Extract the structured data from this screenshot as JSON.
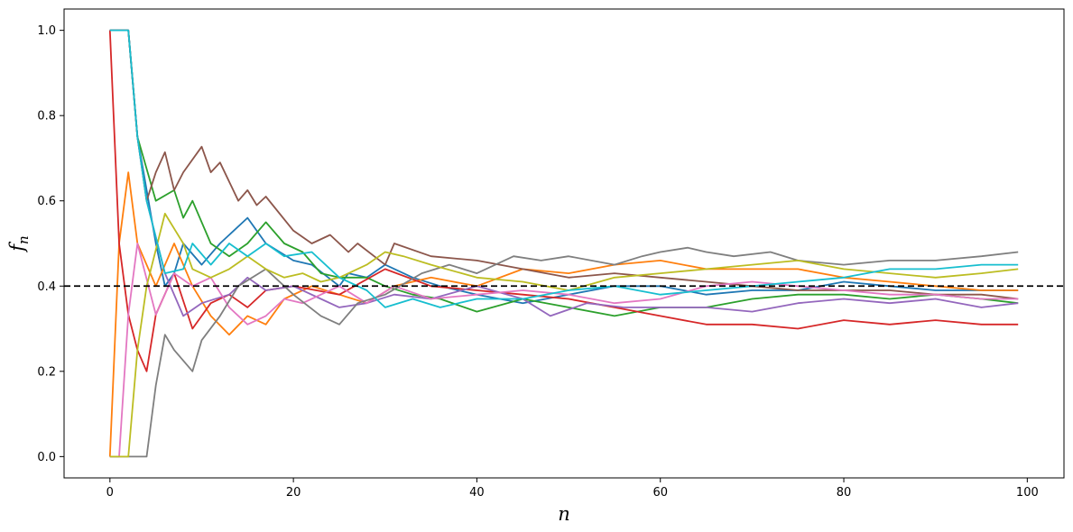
{
  "chart_data": {
    "type": "line",
    "title": "",
    "xlabel": "n",
    "ylabel": "f",
    "ylabel_sub": "n",
    "xlim": [
      -5,
      104
    ],
    "ylim": [
      -0.05,
      1.05
    ],
    "xticks": [
      0,
      20,
      40,
      60,
      80,
      100
    ],
    "yticks": [
      0.0,
      0.2,
      0.4,
      0.6,
      0.8,
      1.0
    ],
    "xtick_labels": [
      "0",
      "20",
      "40",
      "60",
      "80",
      "100"
    ],
    "ytick_labels": [
      "0.0",
      "0.2",
      "0.4",
      "0.6",
      "0.8",
      "1.0"
    ],
    "grid": false,
    "legend": "none",
    "reference_line": {
      "y": 0.4,
      "style": "dashed",
      "color": "#000000"
    },
    "x": [
      0,
      99
    ],
    "series": [
      {
        "color": "#1f77b4",
        "keypoints": [
          [
            0,
            1
          ],
          [
            2,
            1
          ],
          [
            3,
            0.75
          ],
          [
            5,
            0.5
          ],
          [
            6,
            0.4
          ],
          [
            7,
            0.43
          ],
          [
            8,
            0.5
          ],
          [
            10,
            0.45
          ],
          [
            12,
            0.5
          ],
          [
            15,
            0.56
          ],
          [
            17,
            0.5
          ],
          [
            20,
            0.46
          ],
          [
            22,
            0.45
          ],
          [
            25,
            0.4
          ],
          [
            26,
            0.43
          ],
          [
            28,
            0.42
          ],
          [
            30,
            0.45
          ],
          [
            33,
            0.42
          ],
          [
            36,
            0.4
          ],
          [
            40,
            0.38
          ],
          [
            45,
            0.36
          ],
          [
            50,
            0.38
          ],
          [
            55,
            0.4
          ],
          [
            60,
            0.4
          ],
          [
            65,
            0.38
          ],
          [
            70,
            0.39
          ],
          [
            75,
            0.39
          ],
          [
            80,
            0.41
          ],
          [
            85,
            0.4
          ],
          [
            90,
            0.39
          ],
          [
            95,
            0.39
          ],
          [
            99,
            0.39
          ]
        ]
      },
      {
        "color": "#ff7f0e",
        "keypoints": [
          [
            0,
            0
          ],
          [
            1,
            0.5
          ],
          [
            2,
            0.667
          ],
          [
            3,
            0.5
          ],
          [
            5,
            0.4
          ],
          [
            7,
            0.5
          ],
          [
            9,
            0.4
          ],
          [
            11,
            0.33
          ],
          [
            13,
            0.286
          ],
          [
            15,
            0.33
          ],
          [
            17,
            0.31
          ],
          [
            19,
            0.37
          ],
          [
            22,
            0.4
          ],
          [
            25,
            0.38
          ],
          [
            28,
            0.36
          ],
          [
            31,
            0.4
          ],
          [
            35,
            0.42
          ],
          [
            40,
            0.4
          ],
          [
            45,
            0.44
          ],
          [
            50,
            0.43
          ],
          [
            55,
            0.45
          ],
          [
            60,
            0.46
          ],
          [
            65,
            0.44
          ],
          [
            70,
            0.44
          ],
          [
            75,
            0.44
          ],
          [
            80,
            0.42
          ],
          [
            85,
            0.41
          ],
          [
            90,
            0.4
          ],
          [
            95,
            0.39
          ],
          [
            99,
            0.39
          ]
        ]
      },
      {
        "color": "#2ca02c",
        "keypoints": [
          [
            0,
            1
          ],
          [
            2,
            1
          ],
          [
            3,
            0.75
          ],
          [
            5,
            0.6
          ],
          [
            7,
            0.625
          ],
          [
            8,
            0.56
          ],
          [
            9,
            0.6
          ],
          [
            11,
            0.5
          ],
          [
            13,
            0.47
          ],
          [
            15,
            0.5
          ],
          [
            17,
            0.55
          ],
          [
            19,
            0.5
          ],
          [
            21,
            0.48
          ],
          [
            23,
            0.43
          ],
          [
            25,
            0.42
          ],
          [
            28,
            0.42
          ],
          [
            30,
            0.4
          ],
          [
            33,
            0.38
          ],
          [
            36,
            0.37
          ],
          [
            40,
            0.34
          ],
          [
            45,
            0.37
          ],
          [
            50,
            0.35
          ],
          [
            55,
            0.33
          ],
          [
            60,
            0.35
          ],
          [
            65,
            0.35
          ],
          [
            70,
            0.37
          ],
          [
            75,
            0.38
          ],
          [
            80,
            0.38
          ],
          [
            85,
            0.37
          ],
          [
            90,
            0.38
          ],
          [
            95,
            0.37
          ],
          [
            99,
            0.36
          ]
        ]
      },
      {
        "color": "#d62728",
        "keypoints": [
          [
            0,
            1
          ],
          [
            1,
            0.5
          ],
          [
            2,
            0.333
          ],
          [
            3,
            0.25
          ],
          [
            4,
            0.2
          ],
          [
            5,
            0.333
          ],
          [
            7,
            0.43
          ],
          [
            9,
            0.3
          ],
          [
            11,
            0.36
          ],
          [
            13,
            0.38
          ],
          [
            15,
            0.35
          ],
          [
            17,
            0.39
          ],
          [
            20,
            0.4
          ],
          [
            25,
            0.38
          ],
          [
            30,
            0.44
          ],
          [
            35,
            0.4
          ],
          [
            40,
            0.39
          ],
          [
            45,
            0.38
          ],
          [
            50,
            0.37
          ],
          [
            55,
            0.35
          ],
          [
            60,
            0.33
          ],
          [
            65,
            0.31
          ],
          [
            70,
            0.31
          ],
          [
            75,
            0.3
          ],
          [
            80,
            0.32
          ],
          [
            85,
            0.31
          ],
          [
            90,
            0.32
          ],
          [
            95,
            0.31
          ],
          [
            99,
            0.31
          ]
        ]
      },
      {
        "color": "#9467bd",
        "keypoints": [
          [
            0,
            1
          ],
          [
            2,
            1
          ],
          [
            3,
            0.75
          ],
          [
            4,
            0.6
          ],
          [
            6,
            0.43
          ],
          [
            8,
            0.33
          ],
          [
            10,
            0.36
          ],
          [
            13,
            0.38
          ],
          [
            15,
            0.42
          ],
          [
            17,
            0.39
          ],
          [
            20,
            0.4
          ],
          [
            23,
            0.37
          ],
          [
            25,
            0.35
          ],
          [
            28,
            0.36
          ],
          [
            31,
            0.38
          ],
          [
            35,
            0.37
          ],
          [
            40,
            0.4
          ],
          [
            45,
            0.37
          ],
          [
            48,
            0.33
          ],
          [
            52,
            0.36
          ],
          [
            56,
            0.35
          ],
          [
            60,
            0.35
          ],
          [
            65,
            0.35
          ],
          [
            70,
            0.34
          ],
          [
            75,
            0.36
          ],
          [
            80,
            0.37
          ],
          [
            85,
            0.36
          ],
          [
            90,
            0.37
          ],
          [
            95,
            0.35
          ],
          [
            99,
            0.36
          ]
        ]
      },
      {
        "color": "#8c564b",
        "keypoints": [
          [
            0,
            1
          ],
          [
            2,
            1
          ],
          [
            3,
            0.75
          ],
          [
            4,
            0.6
          ],
          [
            5,
            0.667
          ],
          [
            6,
            0.714
          ],
          [
            7,
            0.625
          ],
          [
            8,
            0.667
          ],
          [
            10,
            0.727
          ],
          [
            11,
            0.667
          ],
          [
            12,
            0.69
          ],
          [
            14,
            0.6
          ],
          [
            15,
            0.625
          ],
          [
            16,
            0.59
          ],
          [
            17,
            0.61
          ],
          [
            20,
            0.53
          ],
          [
            22,
            0.5
          ],
          [
            24,
            0.52
          ],
          [
            26,
            0.48
          ],
          [
            27,
            0.5
          ],
          [
            30,
            0.45
          ],
          [
            31,
            0.5
          ],
          [
            35,
            0.47
          ],
          [
            40,
            0.46
          ],
          [
            45,
            0.44
          ],
          [
            50,
            0.42
          ],
          [
            55,
            0.43
          ],
          [
            60,
            0.42
          ],
          [
            65,
            0.41
          ],
          [
            70,
            0.4
          ],
          [
            75,
            0.39
          ],
          [
            80,
            0.39
          ],
          [
            85,
            0.39
          ],
          [
            90,
            0.38
          ],
          [
            95,
            0.38
          ],
          [
            99,
            0.37
          ]
        ]
      },
      {
        "color": "#e377c2",
        "keypoints": [
          [
            0,
            0
          ],
          [
            1,
            0
          ],
          [
            2,
            0.333
          ],
          [
            3,
            0.5
          ],
          [
            5,
            0.333
          ],
          [
            7,
            0.43
          ],
          [
            9,
            0.4
          ],
          [
            11,
            0.42
          ],
          [
            13,
            0.35
          ],
          [
            15,
            0.31
          ],
          [
            17,
            0.33
          ],
          [
            19,
            0.37
          ],
          [
            21,
            0.36
          ],
          [
            23,
            0.38
          ],
          [
            25,
            0.4
          ],
          [
            28,
            0.36
          ],
          [
            31,
            0.4
          ],
          [
            35,
            0.37
          ],
          [
            40,
            0.38
          ],
          [
            45,
            0.39
          ],
          [
            50,
            0.38
          ],
          [
            55,
            0.36
          ],
          [
            60,
            0.37
          ],
          [
            65,
            0.4
          ],
          [
            70,
            0.41
          ],
          [
            75,
            0.4
          ],
          [
            80,
            0.39
          ],
          [
            85,
            0.38
          ],
          [
            90,
            0.38
          ],
          [
            95,
            0.37
          ],
          [
            99,
            0.37
          ]
        ]
      },
      {
        "color": "#7f7f7f",
        "keypoints": [
          [
            0,
            0
          ],
          [
            4,
            0
          ],
          [
            5,
            0.167
          ],
          [
            6,
            0.286
          ],
          [
            7,
            0.25
          ],
          [
            9,
            0.2
          ],
          [
            10,
            0.273
          ],
          [
            12,
            0.33
          ],
          [
            14,
            0.4
          ],
          [
            17,
            0.44
          ],
          [
            20,
            0.38
          ],
          [
            23,
            0.33
          ],
          [
            25,
            0.31
          ],
          [
            27,
            0.36
          ],
          [
            30,
            0.38
          ],
          [
            34,
            0.43
          ],
          [
            37,
            0.45
          ],
          [
            40,
            0.43
          ],
          [
            44,
            0.47
          ],
          [
            47,
            0.46
          ],
          [
            50,
            0.47
          ],
          [
            55,
            0.45
          ],
          [
            58,
            0.47
          ],
          [
            60,
            0.48
          ],
          [
            63,
            0.49
          ],
          [
            65,
            0.48
          ],
          [
            68,
            0.47
          ],
          [
            72,
            0.48
          ],
          [
            75,
            0.46
          ],
          [
            80,
            0.45
          ],
          [
            85,
            0.46
          ],
          [
            90,
            0.46
          ],
          [
            95,
            0.47
          ],
          [
            99,
            0.48
          ]
        ]
      },
      {
        "color": "#bcbd22",
        "keypoints": [
          [
            0,
            0
          ],
          [
            2,
            0
          ],
          [
            3,
            0.25
          ],
          [
            4,
            0.4
          ],
          [
            6,
            0.57
          ],
          [
            8,
            0.5
          ],
          [
            9,
            0.44
          ],
          [
            11,
            0.42
          ],
          [
            13,
            0.44
          ],
          [
            15,
            0.47
          ],
          [
            17,
            0.44
          ],
          [
            19,
            0.42
          ],
          [
            21,
            0.43
          ],
          [
            23,
            0.41
          ],
          [
            25,
            0.42
          ],
          [
            28,
            0.45
          ],
          [
            30,
            0.48
          ],
          [
            32,
            0.47
          ],
          [
            35,
            0.45
          ],
          [
            40,
            0.42
          ],
          [
            45,
            0.41
          ],
          [
            50,
            0.39
          ],
          [
            55,
            0.42
          ],
          [
            60,
            0.43
          ],
          [
            65,
            0.44
          ],
          [
            70,
            0.45
          ],
          [
            75,
            0.46
          ],
          [
            80,
            0.44
          ],
          [
            85,
            0.43
          ],
          [
            90,
            0.42
          ],
          [
            95,
            0.43
          ],
          [
            99,
            0.44
          ]
        ]
      },
      {
        "color": "#17becf",
        "keypoints": [
          [
            0,
            1
          ],
          [
            2,
            1
          ],
          [
            3,
            0.75
          ],
          [
            4,
            0.6
          ],
          [
            6,
            0.43
          ],
          [
            8,
            0.44
          ],
          [
            9,
            0.5
          ],
          [
            11,
            0.45
          ],
          [
            13,
            0.5
          ],
          [
            15,
            0.47
          ],
          [
            17,
            0.5
          ],
          [
            19,
            0.47
          ],
          [
            22,
            0.48
          ],
          [
            25,
            0.42
          ],
          [
            28,
            0.39
          ],
          [
            30,
            0.35
          ],
          [
            33,
            0.37
          ],
          [
            36,
            0.35
          ],
          [
            40,
            0.37
          ],
          [
            45,
            0.37
          ],
          [
            50,
            0.39
          ],
          [
            55,
            0.4
          ],
          [
            60,
            0.38
          ],
          [
            65,
            0.39
          ],
          [
            70,
            0.4
          ],
          [
            75,
            0.41
          ],
          [
            80,
            0.42
          ],
          [
            85,
            0.44
          ],
          [
            90,
            0.44
          ],
          [
            95,
            0.45
          ],
          [
            99,
            0.45
          ]
        ]
      }
    ]
  }
}
